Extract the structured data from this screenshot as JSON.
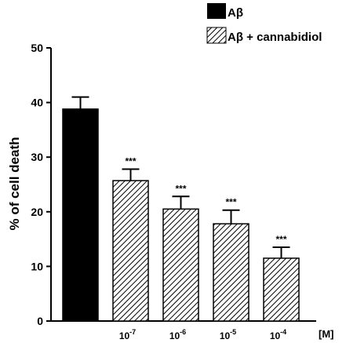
{
  "chart_data": {
    "type": "bar",
    "title": "",
    "xlabel": "",
    "ylabel": "% of cell death",
    "ylim": [
      0,
      50
    ],
    "yticks": [
      0,
      10,
      20,
      30,
      40,
      50
    ],
    "x_unit": "[M]",
    "legend_position": "top-right",
    "grid": false,
    "legend": [
      {
        "label": "Aβ",
        "style": "solid"
      },
      {
        "label": "Aβ + cannabidiol",
        "style": "hatched"
      }
    ],
    "bars": [
      {
        "tick_base": "",
        "tick_exp": "",
        "value": 38.8,
        "error": 2.2,
        "significance": "",
        "style": "solid"
      },
      {
        "tick_base": "10",
        "tick_exp": "-7",
        "value": 25.7,
        "error": 2.1,
        "significance": "***",
        "style": "hatched"
      },
      {
        "tick_base": "10",
        "tick_exp": "-6",
        "value": 20.5,
        "error": 2.3,
        "significance": "***",
        "style": "hatched"
      },
      {
        "tick_base": "10",
        "tick_exp": "-5",
        "value": 17.8,
        "error": 2.5,
        "significance": "***",
        "style": "hatched"
      },
      {
        "tick_base": "10",
        "tick_exp": "-4",
        "value": 11.5,
        "error": 2.0,
        "significance": "***",
        "style": "hatched"
      }
    ],
    "colors": {
      "bar": "#000000",
      "hatch_bg": "#ffffff",
      "axis": "#000000"
    }
  }
}
